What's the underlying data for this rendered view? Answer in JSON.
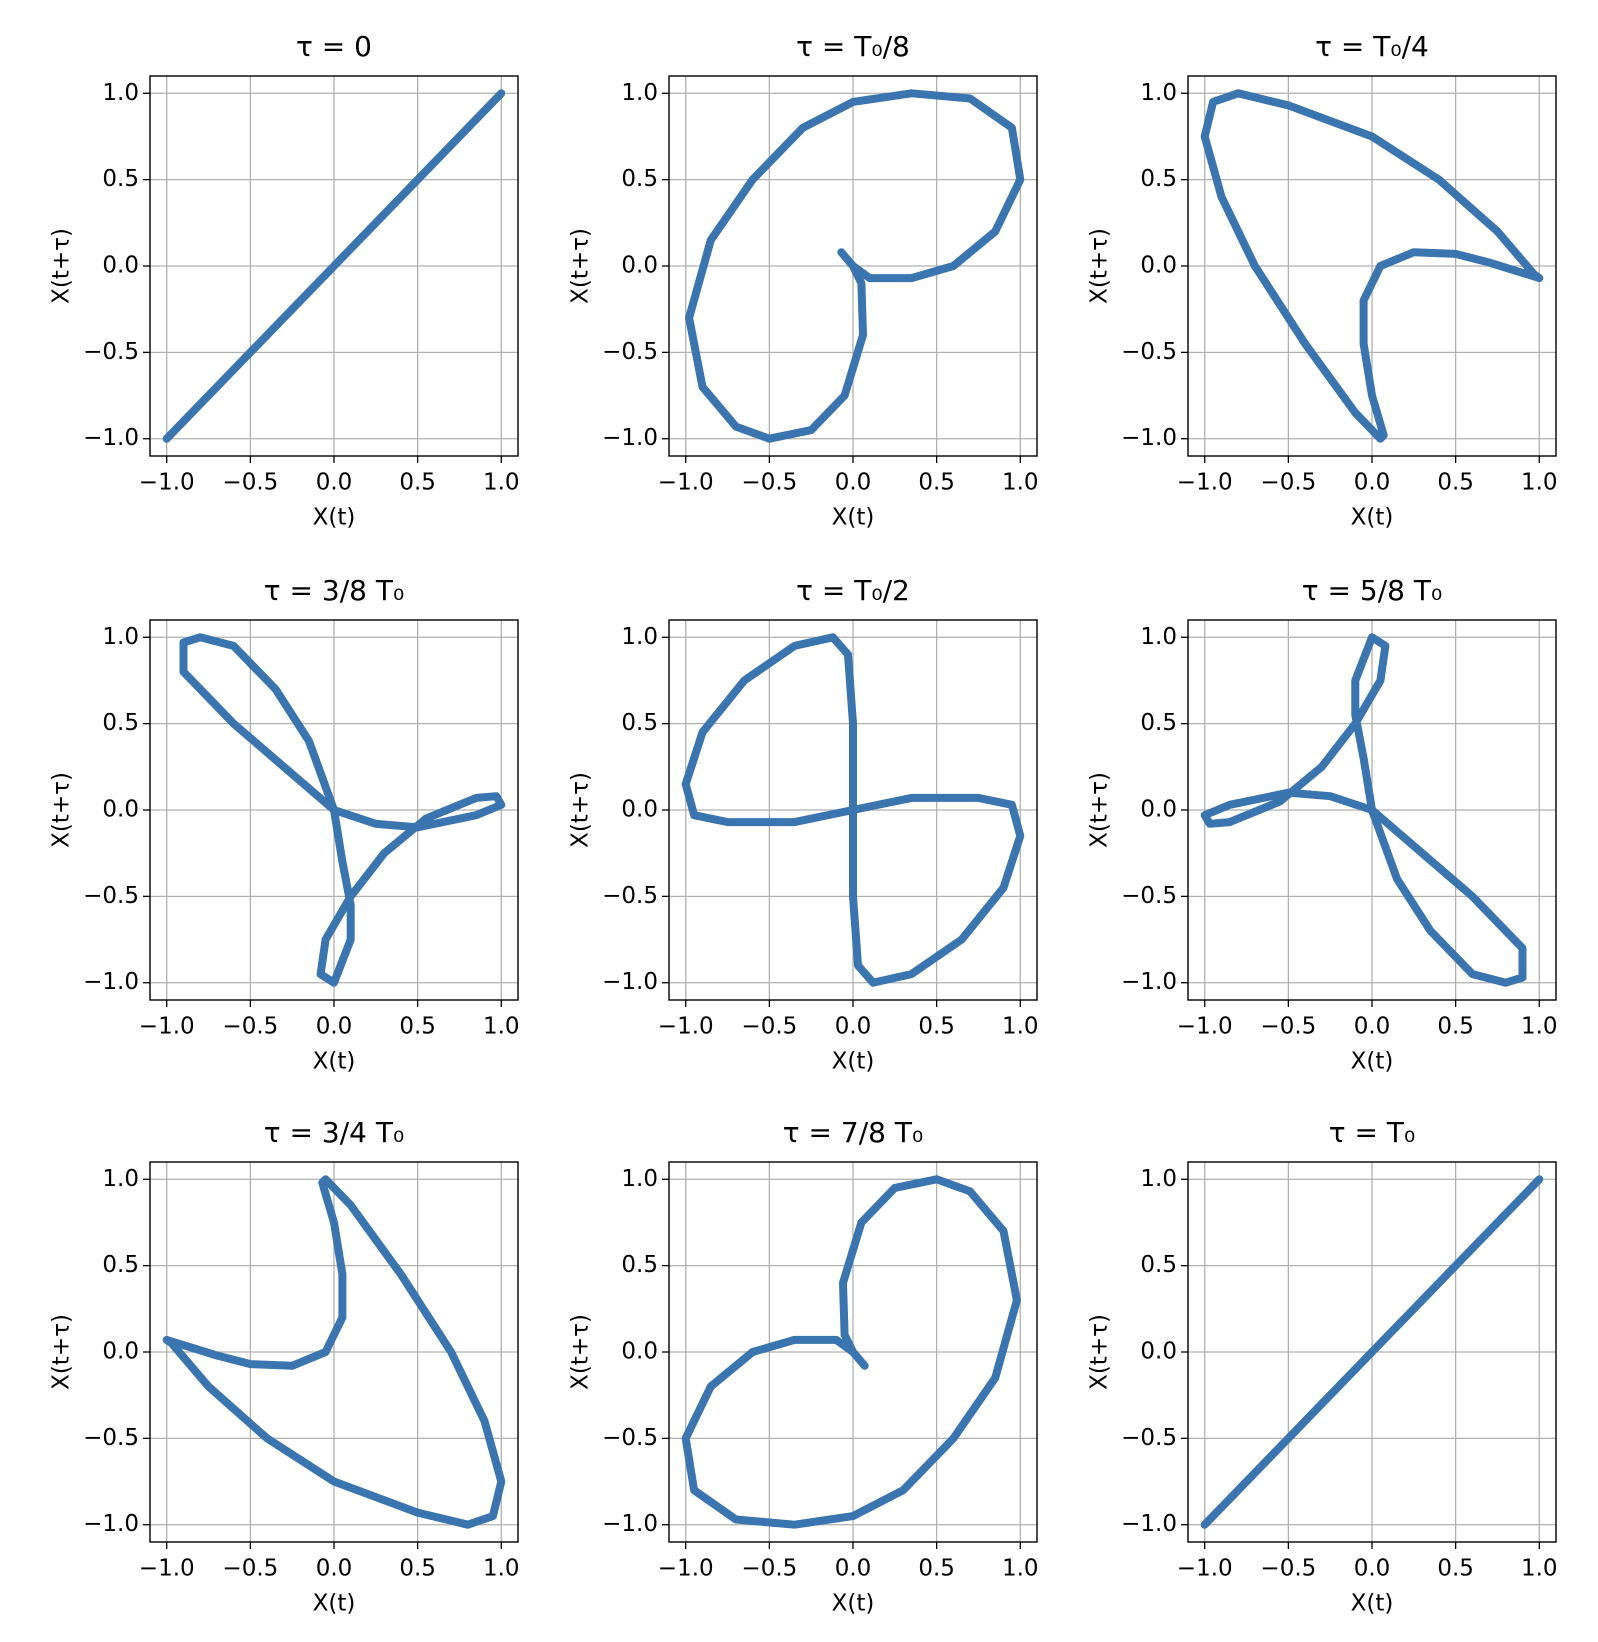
{
  "chart_data": [
    {
      "type": "line",
      "title": "τ = 0",
      "xlabel": "X(t)",
      "ylabel": "X(t+τ)",
      "color": "#3b75af",
      "grid": true,
      "xlim": [
        -1.1,
        1.1
      ],
      "ylim": [
        -1.1,
        1.1
      ],
      "xticks": [
        {
          "value": -1,
          "label": "−1.0"
        },
        {
          "value": -0.5,
          "label": "−0.5"
        },
        {
          "value": 0,
          "label": "0.0"
        },
        0.5,
        {
          "value": 1,
          "label": "1.0"
        }
      ],
      "yticks": [
        {
          "value": -1,
          "label": "−1.0"
        },
        {
          "value": -0.5,
          "label": "−0.5"
        },
        {
          "value": 0,
          "label": "0.0"
        },
        0.5,
        {
          "value": 1,
          "label": "1.0"
        }
      ],
      "x": [
        -1,
        1
      ],
      "y": [
        -1,
        1
      ]
    },
    {
      "type": "line",
      "title": "τ = T₀/8",
      "xlabel": "X(t)",
      "ylabel": "X(t+τ)",
      "color": "#3b75af",
      "grid": true,
      "xlim": [
        -1.1,
        1.1
      ],
      "ylim": [
        -1.1,
        1.1
      ],
      "xticks": [
        {
          "value": -1,
          "label": "−1.0"
        },
        {
          "value": -0.5,
          "label": "−0.5"
        },
        {
          "value": 0,
          "label": "0.0"
        },
        0.5,
        {
          "value": 1,
          "label": "1.0"
        }
      ],
      "yticks": [
        {
          "value": -1,
          "label": "−1.0"
        },
        {
          "value": -0.5,
          "label": "−0.5"
        },
        {
          "value": 0,
          "label": "0.0"
        },
        0.5,
        {
          "value": 1,
          "label": "1.0"
        }
      ],
      "x": [
        -0.07,
        0,
        0.1,
        0.35,
        0.6,
        0.85,
        1,
        0.95,
        0.7,
        0.35,
        0,
        -0.3,
        -0.6,
        -0.85,
        -0.98,
        -0.9,
        -0.7,
        -0.5,
        -0.25,
        -0.05,
        0.06,
        0.05,
        0
      ],
      "y": [
        0.08,
        0,
        -0.07,
        -0.07,
        0,
        0.2,
        0.5,
        0.8,
        0.97,
        1,
        0.95,
        0.8,
        0.5,
        0.15,
        -0.3,
        -0.7,
        -0.93,
        -1,
        -0.95,
        -0.75,
        -0.4,
        -0.1,
        0
      ]
    },
    {
      "type": "line",
      "title": "τ = T₀/4",
      "xlabel": "X(t)",
      "ylabel": "X(t+τ)",
      "color": "#3b75af",
      "grid": true,
      "xlim": [
        -1.1,
        1.1
      ],
      "ylim": [
        -1.1,
        1.1
      ],
      "xticks": [
        {
          "value": -1,
          "label": "−1.0"
        },
        {
          "value": -0.5,
          "label": "−0.5"
        },
        {
          "value": 0,
          "label": "0.0"
        },
        0.5,
        {
          "value": 1,
          "label": "1.0"
        }
      ],
      "yticks": [
        {
          "value": -1,
          "label": "−1.0"
        },
        {
          "value": -0.5,
          "label": "−0.5"
        },
        {
          "value": 0,
          "label": "0.0"
        },
        0.5,
        {
          "value": 1,
          "label": "1.0"
        }
      ],
      "x": [
        1,
        0.7,
        0.5,
        0.25,
        0.05,
        -0.05,
        -0.05,
        0,
        0.07,
        0.05,
        -0.1,
        -0.4,
        -0.7,
        -0.9,
        -1,
        -0.95,
        -0.8,
        -0.5,
        0,
        0.4,
        0.75,
        0.97,
        1
      ],
      "y": [
        -0.07,
        0.02,
        0.07,
        0.08,
        0,
        -0.2,
        -0.45,
        -0.75,
        -0.98,
        -1,
        -0.85,
        -0.45,
        0,
        0.4,
        0.75,
        0.95,
        1,
        0.93,
        0.75,
        0.5,
        0.2,
        -0.05,
        -0.07
      ]
    },
    {
      "type": "line",
      "title": "τ = 3/8 T₀",
      "xlabel": "X(t)",
      "ylabel": "X(t+τ)",
      "color": "#3b75af",
      "grid": true,
      "xlim": [
        -1.1,
        1.1
      ],
      "ylim": [
        -1.1,
        1.1
      ],
      "xticks": [
        {
          "value": -1,
          "label": "−1.0"
        },
        {
          "value": -0.5,
          "label": "−0.5"
        },
        {
          "value": 0,
          "label": "0.0"
        },
        0.5,
        {
          "value": 1,
          "label": "1.0"
        }
      ],
      "yticks": [
        {
          "value": -1,
          "label": "−1.0"
        },
        {
          "value": -0.5,
          "label": "−0.5"
        },
        {
          "value": 0,
          "label": "0.0"
        },
        0.5,
        {
          "value": 1,
          "label": "1.0"
        }
      ],
      "x": [
        0,
        -0.3,
        -0.6,
        -0.9,
        -0.9,
        -0.8,
        -0.6,
        -0.35,
        -0.15,
        0,
        0.05,
        0.1,
        0.1,
        0,
        -0.08,
        -0.05,
        0.1,
        0.3,
        0.55,
        0.85,
        0.97,
        1,
        0.85,
        0.5,
        0.25,
        0
      ],
      "y": [
        0,
        0.25,
        0.5,
        0.8,
        0.97,
        1,
        0.95,
        0.7,
        0.4,
        0,
        -0.3,
        -0.55,
        -0.75,
        -1,
        -0.95,
        -0.75,
        -0.5,
        -0.25,
        -0.05,
        0.07,
        0.08,
        0.03,
        -0.03,
        -0.1,
        -0.08,
        0
      ]
    },
    {
      "type": "line",
      "title": "τ = T₀/2",
      "xlabel": "X(t)",
      "ylabel": "X(t+τ)",
      "color": "#3b75af",
      "grid": true,
      "xlim": [
        -1.1,
        1.1
      ],
      "ylim": [
        -1.1,
        1.1
      ],
      "xticks": [
        {
          "value": -1,
          "label": "−1.0"
        },
        {
          "value": -0.5,
          "label": "−0.5"
        },
        {
          "value": 0,
          "label": "0.0"
        },
        0.5,
        {
          "value": 1,
          "label": "1.0"
        }
      ],
      "yticks": [
        {
          "value": -1,
          "label": "−1.0"
        },
        {
          "value": -0.5,
          "label": "−0.5"
        },
        {
          "value": 0,
          "label": "0.0"
        },
        0.5,
        {
          "value": 1,
          "label": "1.0"
        }
      ],
      "x": [
        0,
        -0.35,
        -0.75,
        -0.95,
        -1,
        -0.9,
        -0.65,
        -0.35,
        -0.12,
        -0.03,
        0,
        0,
        0,
        0.03,
        0.12,
        0.35,
        0.65,
        0.9,
        1,
        0.95,
        0.75,
        0.35,
        0
      ],
      "y": [
        0,
        -0.07,
        -0.07,
        -0.03,
        0.15,
        0.45,
        0.75,
        0.95,
        1,
        0.9,
        0.5,
        0,
        -0.5,
        -0.9,
        -1,
        -0.95,
        -0.75,
        -0.45,
        -0.15,
        0.03,
        0.07,
        0.07,
        0
      ]
    },
    {
      "type": "line",
      "title": "τ = 5/8 T₀",
      "xlabel": "X(t)",
      "ylabel": "X(t+τ)",
      "color": "#3b75af",
      "grid": true,
      "xlim": [
        -1.1,
        1.1
      ],
      "ylim": [
        -1.1,
        1.1
      ],
      "xticks": [
        {
          "value": -1,
          "label": "−1.0"
        },
        {
          "value": -0.5,
          "label": "−0.5"
        },
        {
          "value": 0,
          "label": "0.0"
        },
        0.5,
        {
          "value": 1,
          "label": "1.0"
        }
      ],
      "yticks": [
        {
          "value": -1,
          "label": "−1.0"
        },
        {
          "value": -0.5,
          "label": "−0.5"
        },
        {
          "value": 0,
          "label": "0.0"
        },
        0.5,
        {
          "value": 1,
          "label": "1.0"
        }
      ],
      "x": [
        0,
        0.3,
        0.6,
        0.9,
        0.9,
        0.8,
        0.6,
        0.35,
        0.15,
        0,
        -0.05,
        -0.1,
        -0.1,
        0,
        0.08,
        0.05,
        -0.1,
        -0.3,
        -0.55,
        -0.85,
        -0.97,
        -1,
        -0.85,
        -0.5,
        -0.25,
        0
      ],
      "y": [
        0,
        -0.25,
        -0.5,
        -0.8,
        -0.97,
        -1,
        -0.95,
        -0.7,
        -0.4,
        0,
        0.3,
        0.55,
        0.75,
        1,
        0.95,
        0.75,
        0.5,
        0.25,
        0.05,
        -0.07,
        -0.08,
        -0.03,
        0.03,
        0.1,
        0.08,
        0
      ]
    },
    {
      "type": "line",
      "title": "τ = 3/4 T₀",
      "xlabel": "X(t)",
      "ylabel": "X(t+τ)",
      "color": "#3b75af",
      "grid": true,
      "xlim": [
        -1.1,
        1.1
      ],
      "ylim": [
        -1.1,
        1.1
      ],
      "xticks": [
        {
          "value": -1,
          "label": "−1.0"
        },
        {
          "value": -0.5,
          "label": "−0.5"
        },
        {
          "value": 0,
          "label": "0.0"
        },
        0.5,
        {
          "value": 1,
          "label": "1.0"
        }
      ],
      "yticks": [
        {
          "value": -1,
          "label": "−1.0"
        },
        {
          "value": -0.5,
          "label": "−0.5"
        },
        {
          "value": 0,
          "label": "0.0"
        },
        0.5,
        {
          "value": 1,
          "label": "1.0"
        }
      ],
      "x": [
        -1,
        -0.7,
        -0.5,
        -0.25,
        -0.05,
        0.05,
        0.05,
        0,
        -0.07,
        -0.05,
        0.1,
        0.4,
        0.7,
        0.9,
        1,
        0.95,
        0.8,
        0.5,
        0,
        -0.4,
        -0.75,
        -0.97,
        -1
      ],
      "y": [
        0.07,
        -0.02,
        -0.07,
        -0.08,
        0,
        0.2,
        0.45,
        0.75,
        0.98,
        1,
        0.85,
        0.45,
        0,
        -0.4,
        -0.75,
        -0.95,
        -1,
        -0.93,
        -0.75,
        -0.5,
        -0.2,
        0.05,
        0.07
      ]
    },
    {
      "type": "line",
      "title": "τ = 7/8 T₀",
      "xlabel": "X(t)",
      "ylabel": "X(t+τ)",
      "color": "#3b75af",
      "grid": true,
      "xlim": [
        -1.1,
        1.1
      ],
      "ylim": [
        -1.1,
        1.1
      ],
      "xticks": [
        {
          "value": -1,
          "label": "−1.0"
        },
        {
          "value": -0.5,
          "label": "−0.5"
        },
        {
          "value": 0,
          "label": "0.0"
        },
        0.5,
        {
          "value": 1,
          "label": "1.0"
        }
      ],
      "yticks": [
        {
          "value": -1,
          "label": "−1.0"
        },
        {
          "value": -0.5,
          "label": "−0.5"
        },
        {
          "value": 0,
          "label": "0.0"
        },
        0.5,
        {
          "value": 1,
          "label": "1.0"
        }
      ],
      "x": [
        0.07,
        0,
        -0.1,
        -0.35,
        -0.6,
        -0.85,
        -1,
        -0.95,
        -0.7,
        -0.35,
        0,
        0.3,
        0.6,
        0.85,
        0.98,
        0.9,
        0.7,
        0.5,
        0.25,
        0.05,
        -0.06,
        -0.05,
        0
      ],
      "y": [
        -0.08,
        0,
        0.07,
        0.07,
        0,
        -0.2,
        -0.5,
        -0.8,
        -0.97,
        -1,
        -0.95,
        -0.8,
        -0.5,
        -0.15,
        0.3,
        0.7,
        0.93,
        1,
        0.95,
        0.75,
        0.4,
        0.1,
        0
      ]
    },
    {
      "type": "line",
      "title": "τ = T₀",
      "xlabel": "X(t)",
      "ylabel": "X(t+τ)",
      "color": "#3b75af",
      "grid": true,
      "xlim": [
        -1.1,
        1.1
      ],
      "ylim": [
        -1.1,
        1.1
      ],
      "xticks": [
        {
          "value": -1,
          "label": "−1.0"
        },
        {
          "value": -0.5,
          "label": "−0.5"
        },
        {
          "value": 0,
          "label": "0.0"
        },
        0.5,
        {
          "value": 1,
          "label": "1.0"
        }
      ],
      "yticks": [
        {
          "value": -1,
          "label": "−1.0"
        },
        {
          "value": -0.5,
          "label": "−0.5"
        },
        {
          "value": 0,
          "label": "0.0"
        },
        0.5,
        {
          "value": 1,
          "label": "1.0"
        }
      ],
      "x": [
        -1,
        1
      ],
      "y": [
        -1,
        1
      ]
    }
  ]
}
